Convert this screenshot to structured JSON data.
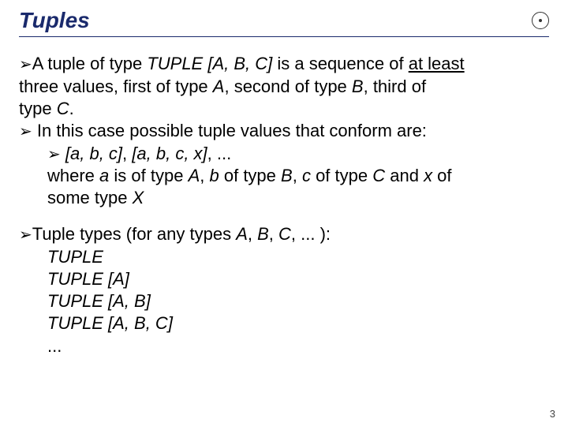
{
  "title": "Tuples",
  "page_number": "3",
  "colors": {
    "title_color": "#1a2a6c",
    "rule_color": "#1a2a6c",
    "text_color": "#000000",
    "background": "#ffffff"
  },
  "typography": {
    "title_fontsize": 28,
    "body_fontsize": 22,
    "title_style": "bold italic"
  },
  "bullet_glyph": "➢",
  "p1": {
    "lead": "A tuple of type ",
    "tuple_abc": "TUPLE [A, B, C]",
    "mid1": " is a sequence of ",
    "atleast": "at least",
    "line2a": "three values, first of type ",
    "A": "A",
    "line2b": ", second of type ",
    "B": "B",
    "line2c": ", third of",
    "line3a": "type ",
    "C": "C",
    "line3b": "."
  },
  "p2": {
    "text": " In this case possible tuple values that conform are:"
  },
  "p3": {
    "ex1": "[a, b, c]",
    "sep": ", ",
    "ex2": "[a, b, c, x]",
    "tail": ", ..."
  },
  "p4": {
    "a": "where ",
    "va": "a",
    "b": " is of type ",
    "tA": "A",
    "c": ", ",
    "vb": "b",
    "d": " of type ",
    "tB": "B",
    "e": ", ",
    "vc": "c",
    "f": " of type ",
    "tC": "C",
    "g": " and ",
    "vx": "x",
    "h": " of",
    "line2a": "some type ",
    "tX": "X"
  },
  "p5": {
    "a": "Tuple types (for any types ",
    "tA": "A",
    "s1": ", ",
    "tB": "B",
    "s2": ", ",
    "tC": "C",
    "tail": ", ... ):"
  },
  "list": {
    "i1": "TUPLE",
    "i2": "TUPLE [A]",
    "i3": "TUPLE [A, B]",
    "i4": "TUPLE [A, B, C]",
    "i5": "..."
  }
}
